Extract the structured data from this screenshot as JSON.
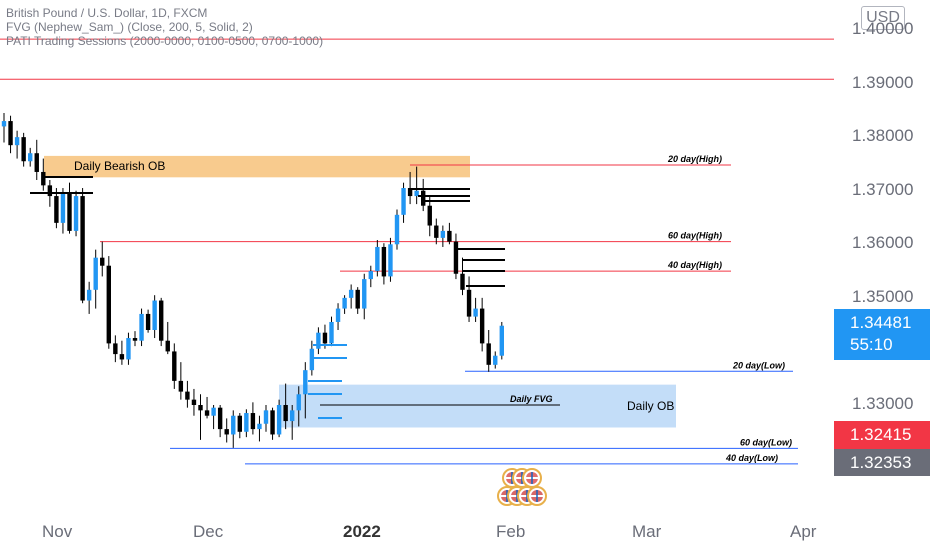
{
  "legend": {
    "line1": "British Pound / U.S. Dollar, 1D, FXCM",
    "line2": "FVG (Nephew_Sam_) (Close, 200, 5, Solid, 2)",
    "line3": "PATI Trading Sessions (2000-0000, 0100-0500, 0700-1000)"
  },
  "currency_button": "USD",
  "price_tags": {
    "current_price": "1.34481",
    "countdown": "55:10",
    "red_price": "1.32415",
    "gray_price": "1.32353"
  },
  "colors": {
    "up_candle": "#2196f3",
    "down_candle": "#000000",
    "bearish_ob": "#f7c27a",
    "daily_ob": "#bcd9f7",
    "resistance_line": "#f23645",
    "support_line": "#2962ff"
  },
  "chart_data": {
    "type": "candlestick",
    "title": "British Pound / U.S. Dollar, 1D, FXCM",
    "y_ticks": [
      "1.40000",
      "1.39000",
      "1.38000",
      "1.37000",
      "1.36000",
      "1.35000",
      "1.33000"
    ],
    "x_ticks": [
      {
        "label": "Nov",
        "bold": false
      },
      {
        "label": "Dec",
        "bold": false
      },
      {
        "label": "2022",
        "bold": true
      },
      {
        "label": "Feb",
        "bold": false
      },
      {
        "label": "Mar",
        "bold": false
      },
      {
        "label": "Apr",
        "bold": false
      }
    ],
    "ylim": [
      1.3175,
      1.4025
    ],
    "zones": [
      {
        "label": "Daily Bearish OB",
        "x_start": 0.0,
        "x_end": 75.0,
        "y_low": 1.3725,
        "y_high": 1.3765
      },
      {
        "label": "Daily OB",
        "x_start": 47.0,
        "x_end": 112.0,
        "y_low": 1.3258,
        "y_high": 1.3338
      }
    ],
    "levels": [
      {
        "label": "",
        "price": 1.3983,
        "kind": "resistance"
      },
      {
        "label": "",
        "price": 1.3908,
        "kind": "resistance"
      },
      {
        "label": "20 day(High)",
        "price": 1.3748,
        "kind": "resistance"
      },
      {
        "label": "60 day(High)",
        "price": 1.3605,
        "kind": "resistance"
      },
      {
        "label": "40 day(High)",
        "price": 1.355,
        "kind": "resistance"
      },
      {
        "label": "20 day(Low)",
        "price": 1.3363,
        "kind": "support"
      },
      {
        "label": "60 day(Low)",
        "price": 1.3219,
        "kind": "support"
      },
      {
        "label": "40 day(Low)",
        "price": 1.319,
        "kind": "support"
      },
      {
        "label": "Daily FVG",
        "price": 1.33,
        "kind": "fvg"
      }
    ],
    "candles": [
      {
        "o": 1.382,
        "h": 1.3845,
        "l": 1.379,
        "c": 1.383
      },
      {
        "o": 1.383,
        "h": 1.384,
        "l": 1.377,
        "c": 1.3785
      },
      {
        "o": 1.3785,
        "h": 1.3812,
        "l": 1.376,
        "c": 1.38
      },
      {
        "o": 1.38,
        "h": 1.3808,
        "l": 1.3745,
        "c": 1.3755
      },
      {
        "o": 1.3755,
        "h": 1.378,
        "l": 1.3745,
        "c": 1.377
      },
      {
        "o": 1.377,
        "h": 1.3795,
        "l": 1.372,
        "c": 1.3735
      },
      {
        "o": 1.3735,
        "h": 1.376,
        "l": 1.37,
        "c": 1.371
      },
      {
        "o": 1.371,
        "h": 1.372,
        "l": 1.367,
        "c": 1.369
      },
      {
        "o": 1.369,
        "h": 1.3705,
        "l": 1.363,
        "c": 1.364
      },
      {
        "o": 1.364,
        "h": 1.3705,
        "l": 1.362,
        "c": 1.3695
      },
      {
        "o": 1.3695,
        "h": 1.3715,
        "l": 1.362,
        "c": 1.3625
      },
      {
        "o": 1.3625,
        "h": 1.37,
        "l": 1.3615,
        "c": 1.369
      },
      {
        "o": 1.369,
        "h": 1.3705,
        "l": 1.349,
        "c": 1.3495
      },
      {
        "o": 1.3495,
        "h": 1.353,
        "l": 1.347,
        "c": 1.3515
      },
      {
        "o": 1.3515,
        "h": 1.359,
        "l": 1.348,
        "c": 1.3575
      },
      {
        "o": 1.3575,
        "h": 1.3605,
        "l": 1.354,
        "c": 1.356
      },
      {
        "o": 1.356,
        "h": 1.3578,
        "l": 1.3405,
        "c": 1.3415
      },
      {
        "o": 1.3415,
        "h": 1.343,
        "l": 1.338,
        "c": 1.3395
      },
      {
        "o": 1.3395,
        "h": 1.342,
        "l": 1.3375,
        "c": 1.3385
      },
      {
        "o": 1.3385,
        "h": 1.3435,
        "l": 1.3375,
        "c": 1.3425
      },
      {
        "o": 1.3425,
        "h": 1.3438,
        "l": 1.341,
        "c": 1.342
      },
      {
        "o": 1.342,
        "h": 1.348,
        "l": 1.341,
        "c": 1.347
      },
      {
        "o": 1.347,
        "h": 1.3478,
        "l": 1.3435,
        "c": 1.344
      },
      {
        "o": 1.344,
        "h": 1.3505,
        "l": 1.3425,
        "c": 1.3495
      },
      {
        "o": 1.3495,
        "h": 1.35,
        "l": 1.341,
        "c": 1.342
      },
      {
        "o": 1.342,
        "h": 1.3455,
        "l": 1.3395,
        "c": 1.34
      },
      {
        "o": 1.34,
        "h": 1.3415,
        "l": 1.333,
        "c": 1.3345
      },
      {
        "o": 1.3345,
        "h": 1.338,
        "l": 1.331,
        "c": 1.3325
      },
      {
        "o": 1.3325,
        "h": 1.3345,
        "l": 1.3295,
        "c": 1.331
      },
      {
        "o": 1.331,
        "h": 1.333,
        "l": 1.328,
        "c": 1.33
      },
      {
        "o": 1.33,
        "h": 1.332,
        "l": 1.3235,
        "c": 1.329
      },
      {
        "o": 1.329,
        "h": 1.3315,
        "l": 1.3275,
        "c": 1.328
      },
      {
        "o": 1.328,
        "h": 1.33,
        "l": 1.3255,
        "c": 1.3295
      },
      {
        "o": 1.3295,
        "h": 1.33,
        "l": 1.324,
        "c": 1.3255
      },
      {
        "o": 1.3255,
        "h": 1.3275,
        "l": 1.323,
        "c": 1.3245
      },
      {
        "o": 1.3245,
        "h": 1.329,
        "l": 1.322,
        "c": 1.328
      },
      {
        "o": 1.328,
        "h": 1.3285,
        "l": 1.3238,
        "c": 1.325
      },
      {
        "o": 1.325,
        "h": 1.3292,
        "l": 1.324,
        "c": 1.3285
      },
      {
        "o": 1.3285,
        "h": 1.3305,
        "l": 1.3245,
        "c": 1.3255
      },
      {
        "o": 1.3255,
        "h": 1.328,
        "l": 1.3232,
        "c": 1.3265
      },
      {
        "o": 1.3265,
        "h": 1.33,
        "l": 1.325,
        "c": 1.329
      },
      {
        "o": 1.329,
        "h": 1.3295,
        "l": 1.3235,
        "c": 1.3245
      },
      {
        "o": 1.3245,
        "h": 1.331,
        "l": 1.324,
        "c": 1.33
      },
      {
        "o": 1.33,
        "h": 1.334,
        "l": 1.3255,
        "c": 1.327
      },
      {
        "o": 1.327,
        "h": 1.33,
        "l": 1.3235,
        "c": 1.329
      },
      {
        "o": 1.329,
        "h": 1.3335,
        "l": 1.326,
        "c": 1.332
      },
      {
        "o": 1.332,
        "h": 1.338,
        "l": 1.3275,
        "c": 1.3365
      },
      {
        "o": 1.3365,
        "h": 1.342,
        "l": 1.3355,
        "c": 1.3405
      },
      {
        "o": 1.3405,
        "h": 1.3445,
        "l": 1.3395,
        "c": 1.3435
      },
      {
        "o": 1.3435,
        "h": 1.345,
        "l": 1.3405,
        "c": 1.3415
      },
      {
        "o": 1.3415,
        "h": 1.3465,
        "l": 1.341,
        "c": 1.3455
      },
      {
        "o": 1.3455,
        "h": 1.349,
        "l": 1.344,
        "c": 1.348
      },
      {
        "o": 1.348,
        "h": 1.3505,
        "l": 1.347,
        "c": 1.35
      },
      {
        "o": 1.35,
        "h": 1.3525,
        "l": 1.348,
        "c": 1.3515
      },
      {
        "o": 1.3515,
        "h": 1.352,
        "l": 1.347,
        "c": 1.348
      },
      {
        "o": 1.348,
        "h": 1.3545,
        "l": 1.346,
        "c": 1.3535
      },
      {
        "o": 1.3535,
        "h": 1.356,
        "l": 1.352,
        "c": 1.355
      },
      {
        "o": 1.355,
        "h": 1.3608,
        "l": 1.354,
        "c": 1.3595
      },
      {
        "o": 1.3595,
        "h": 1.3602,
        "l": 1.3525,
        "c": 1.354
      },
      {
        "o": 1.354,
        "h": 1.3612,
        "l": 1.353,
        "c": 1.36
      },
      {
        "o": 1.36,
        "h": 1.3665,
        "l": 1.359,
        "c": 1.3655
      },
      {
        "o": 1.3655,
        "h": 1.3715,
        "l": 1.364,
        "c": 1.3705
      },
      {
        "o": 1.3705,
        "h": 1.3735,
        "l": 1.3675,
        "c": 1.369
      },
      {
        "o": 1.369,
        "h": 1.3745,
        "l": 1.3675,
        "c": 1.37
      },
      {
        "o": 1.37,
        "h": 1.3722,
        "l": 1.3662,
        "c": 1.3672
      },
      {
        "o": 1.3672,
        "h": 1.369,
        "l": 1.3615,
        "c": 1.3635
      },
      {
        "o": 1.3635,
        "h": 1.3648,
        "l": 1.36,
        "c": 1.3612
      },
      {
        "o": 1.3612,
        "h": 1.3635,
        "l": 1.3595,
        "c": 1.3625
      },
      {
        "o": 1.3625,
        "h": 1.364,
        "l": 1.36,
        "c": 1.3605
      },
      {
        "o": 1.3605,
        "h": 1.362,
        "l": 1.3535,
        "c": 1.3545
      },
      {
        "o": 1.3545,
        "h": 1.3575,
        "l": 1.3505,
        "c": 1.3515
      },
      {
        "o": 1.3515,
        "h": 1.354,
        "l": 1.3455,
        "c": 1.3465
      },
      {
        "o": 1.3465,
        "h": 1.35,
        "l": 1.3455,
        "c": 1.348
      },
      {
        "o": 1.348,
        "h": 1.35,
        "l": 1.34,
        "c": 1.3415
      },
      {
        "o": 1.3415,
        "h": 1.344,
        "l": 1.3362,
        "c": 1.3375
      },
      {
        "o": 1.3375,
        "h": 1.34,
        "l": 1.3368,
        "c": 1.3392
      },
      {
        "o": 1.3392,
        "h": 1.3455,
        "l": 1.3385,
        "c": 1.3448
      }
    ]
  }
}
